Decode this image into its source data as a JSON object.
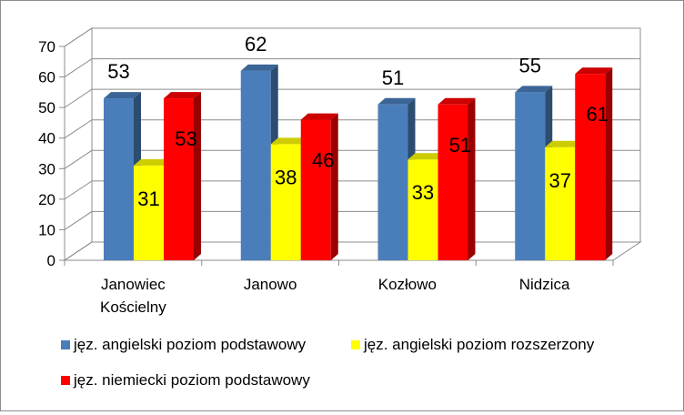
{
  "chart_data": {
    "type": "bar",
    "categories": [
      "Janowiec Kościelny",
      "Janowo",
      "Kozłowo",
      "Nidzica"
    ],
    "category_lines": [
      [
        "Janowiec",
        "Kościelny"
      ],
      [
        "Janowo"
      ],
      [
        "Kozłowo"
      ],
      [
        "Nidzica"
      ]
    ],
    "series": [
      {
        "name": "jęz. angielski poziom podstawowy",
        "color": "#4a7ebb",
        "values": [
          53,
          62,
          51,
          55
        ]
      },
      {
        "name": "jęz. angielski poziom rozszerzony",
        "color": "#ffff00",
        "values": [
          31,
          38,
          33,
          37
        ]
      },
      {
        "name": "jęz. niemiecki poziom podstawowy",
        "color": "#ff0000",
        "values": [
          53,
          46,
          51,
          61
        ]
      }
    ],
    "value_labels": {
      "series_0": [
        "53",
        "62",
        "51",
        "55"
      ],
      "series_1": [
        "31",
        "38",
        "33",
        "37"
      ],
      "series_2": [
        "53",
        "46",
        "51",
        "61"
      ]
    },
    "yticks": [
      "0",
      "10",
      "20",
      "30",
      "40",
      "50",
      "60",
      "70"
    ],
    "ylim": [
      0,
      70
    ],
    "grid": true,
    "three_d": true,
    "legend_position": "bottom"
  }
}
